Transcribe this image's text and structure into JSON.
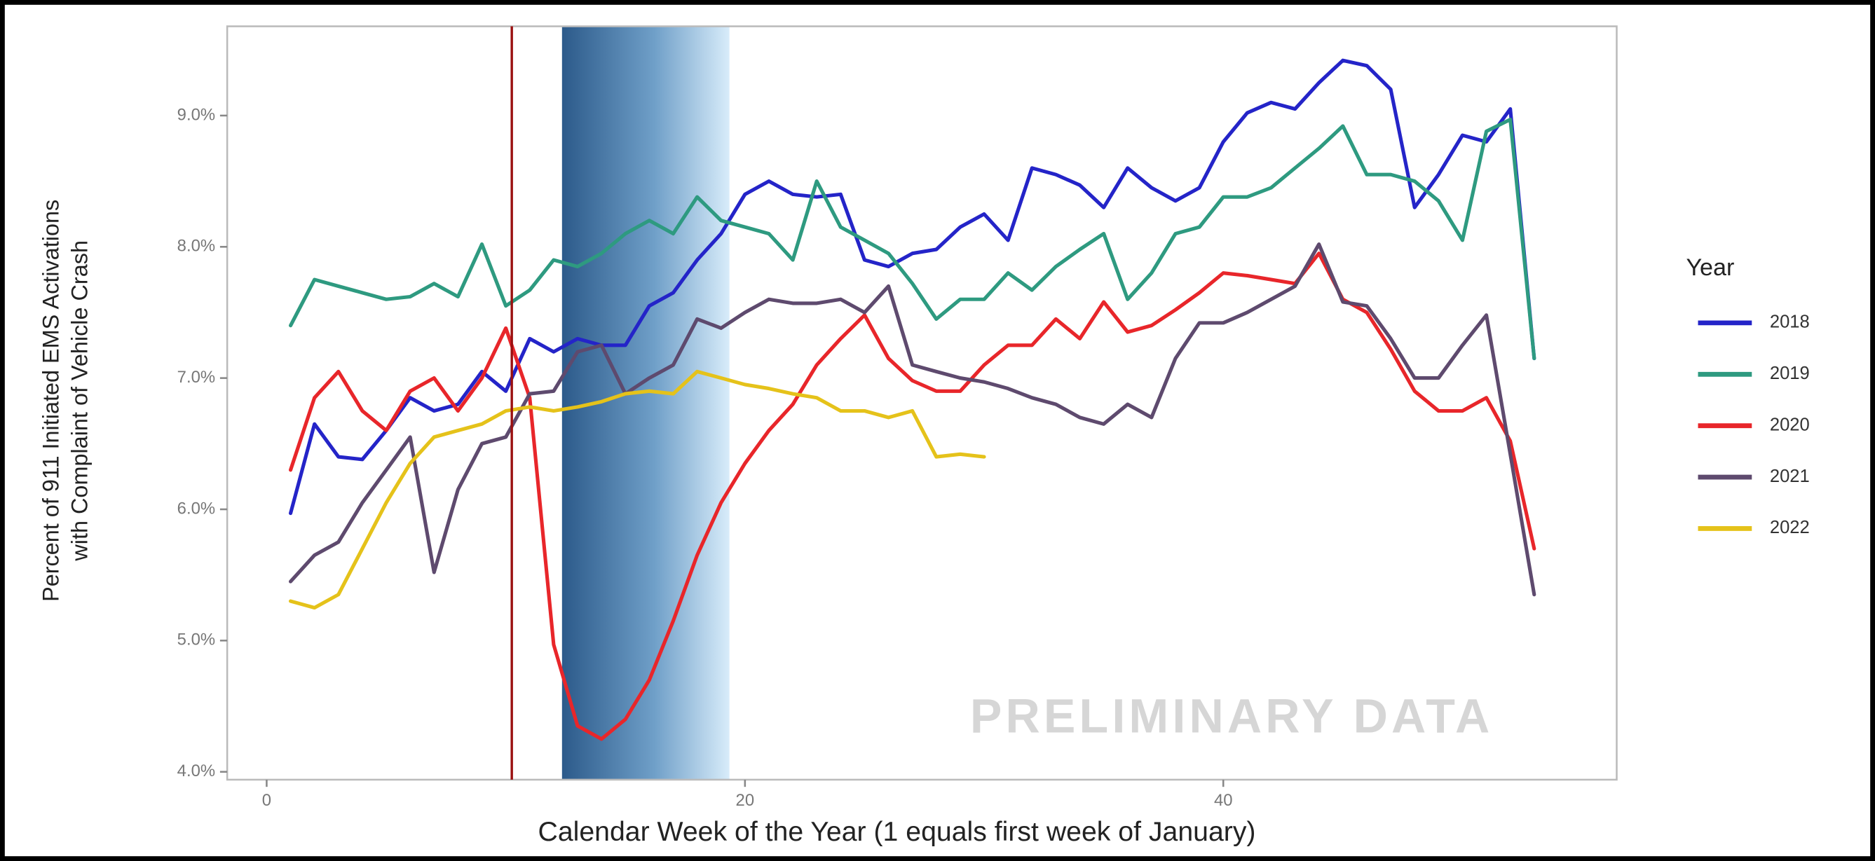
{
  "chart_data": {
    "type": "line",
    "y_label": [
      "Percent of 911 Initiated EMS Activations",
      "with Complaint of Vehicle Crash"
    ],
    "x_label": "Calendar Week of the Year (1 equals first week of January)",
    "legend_title": "Year",
    "annotation": "PRELIMINARY DATA",
    "legend": "right",
    "xlim": [
      -1.65,
      56.45
    ],
    "ylim": [
      3.94,
      9.68
    ],
    "xticks": [
      0,
      20,
      40
    ],
    "yticks": [
      {
        "value": 4,
        "label": "4.0%"
      },
      {
        "value": 5,
        "label": "5.0%"
      },
      {
        "value": 6,
        "label": "6.0%"
      },
      {
        "value": 7,
        "label": "7.0%"
      },
      {
        "value": 8,
        "label": "8.0%"
      },
      {
        "value": 9,
        "label": "9.0%"
      }
    ],
    "vline": 10.25,
    "shade": [
      12.35,
      19.35
    ],
    "x": [
      1,
      2,
      3,
      4,
      5,
      6,
      7,
      8,
      9,
      10,
      11,
      12,
      13,
      14,
      15,
      16,
      17,
      18,
      19,
      20,
      21,
      22,
      23,
      24,
      25,
      26,
      27,
      28,
      29,
      30,
      31,
      32,
      33,
      34,
      35,
      36,
      37,
      38,
      39,
      40,
      41,
      42,
      43,
      44,
      45,
      46,
      47,
      48,
      49,
      50,
      51,
      52,
      53
    ],
    "series": [
      {
        "name": "2018",
        "color": "#2424c8",
        "values": [
          5.97,
          6.65,
          6.4,
          6.38,
          6.6,
          6.85,
          6.75,
          6.8,
          7.05,
          6.9,
          7.3,
          7.2,
          7.3,
          7.25,
          7.25,
          7.55,
          7.65,
          7.9,
          8.1,
          8.4,
          8.5,
          8.4,
          8.38,
          8.4,
          7.9,
          7.85,
          7.95,
          7.98,
          8.15,
          8.25,
          8.05,
          8.6,
          8.55,
          8.47,
          8.3,
          8.6,
          8.45,
          8.35,
          8.45,
          8.8,
          9.02,
          9.1,
          9.05,
          9.25,
          9.42,
          9.38,
          9.2,
          8.3,
          8.55,
          8.85,
          8.8,
          9.05,
          7.15
        ]
      },
      {
        "name": "2019",
        "color": "#2e9a80",
        "values": [
          7.4,
          7.75,
          7.7,
          7.65,
          7.6,
          7.62,
          7.72,
          7.62,
          8.02,
          7.55,
          7.67,
          7.9,
          7.85,
          7.95,
          8.1,
          8.2,
          8.1,
          8.38,
          8.2,
          8.15,
          8.1,
          7.9,
          8.5,
          8.15,
          8.05,
          7.95,
          7.72,
          7.45,
          7.6,
          7.6,
          7.8,
          7.67,
          7.85,
          7.98,
          8.1,
          7.6,
          7.8,
          8.1,
          8.15,
          8.38,
          8.38,
          8.45,
          8.6,
          8.75,
          8.92,
          8.55,
          8.55,
          8.5,
          8.35,
          8.05,
          8.88,
          8.97,
          7.15
        ]
      },
      {
        "name": "2020",
        "color": "#e8262a",
        "values": [
          6.3,
          6.85,
          7.05,
          6.75,
          6.6,
          6.9,
          7.0,
          6.75,
          7.0,
          7.38,
          6.85,
          4.97,
          4.35,
          4.25,
          4.4,
          4.7,
          5.15,
          5.65,
          6.05,
          6.35,
          6.6,
          6.8,
          7.1,
          7.3,
          7.48,
          7.15,
          6.98,
          6.9,
          6.9,
          7.1,
          7.25,
          7.25,
          7.45,
          7.3,
          7.58,
          7.35,
          7.4,
          7.52,
          7.65,
          7.8,
          7.78,
          7.75,
          7.72,
          7.95,
          7.6,
          7.5,
          7.22,
          6.9,
          6.75,
          6.75,
          6.85,
          6.52,
          5.7
        ]
      },
      {
        "name": "2021",
        "color": "#5e4a6e",
        "values": [
          5.45,
          5.65,
          5.75,
          6.05,
          6.3,
          6.55,
          5.52,
          6.15,
          6.5,
          6.55,
          6.88,
          6.9,
          7.2,
          7.25,
          6.88,
          7.0,
          7.1,
          7.45,
          7.38,
          7.5,
          7.6,
          7.57,
          7.57,
          7.6,
          7.5,
          7.7,
          7.1,
          7.05,
          7.0,
          6.97,
          6.92,
          6.85,
          6.8,
          6.7,
          6.65,
          6.8,
          6.7,
          7.15,
          7.42,
          7.42,
          7.5,
          7.6,
          7.7,
          8.02,
          7.58,
          7.55,
          7.3,
          7.0,
          7.0,
          7.25,
          7.48,
          6.42,
          5.35
        ]
      },
      {
        "name": "2022",
        "color": "#e5c21a",
        "values": [
          5.3,
          5.25,
          5.35,
          5.7,
          6.05,
          6.35,
          6.55,
          6.6,
          6.65,
          6.75,
          6.78,
          6.75,
          6.78,
          6.82,
          6.88,
          6.9,
          6.88,
          7.05,
          7.0,
          6.95,
          6.92,
          6.88,
          6.85,
          6.75,
          6.75,
          6.7,
          6.75,
          6.4,
          6.42,
          6.4,
          null,
          null,
          null,
          null,
          null,
          null,
          null,
          null,
          null,
          null,
          null,
          null,
          null,
          null,
          null,
          null,
          null,
          null,
          null,
          null,
          null,
          null,
          null
        ]
      }
    ]
  }
}
